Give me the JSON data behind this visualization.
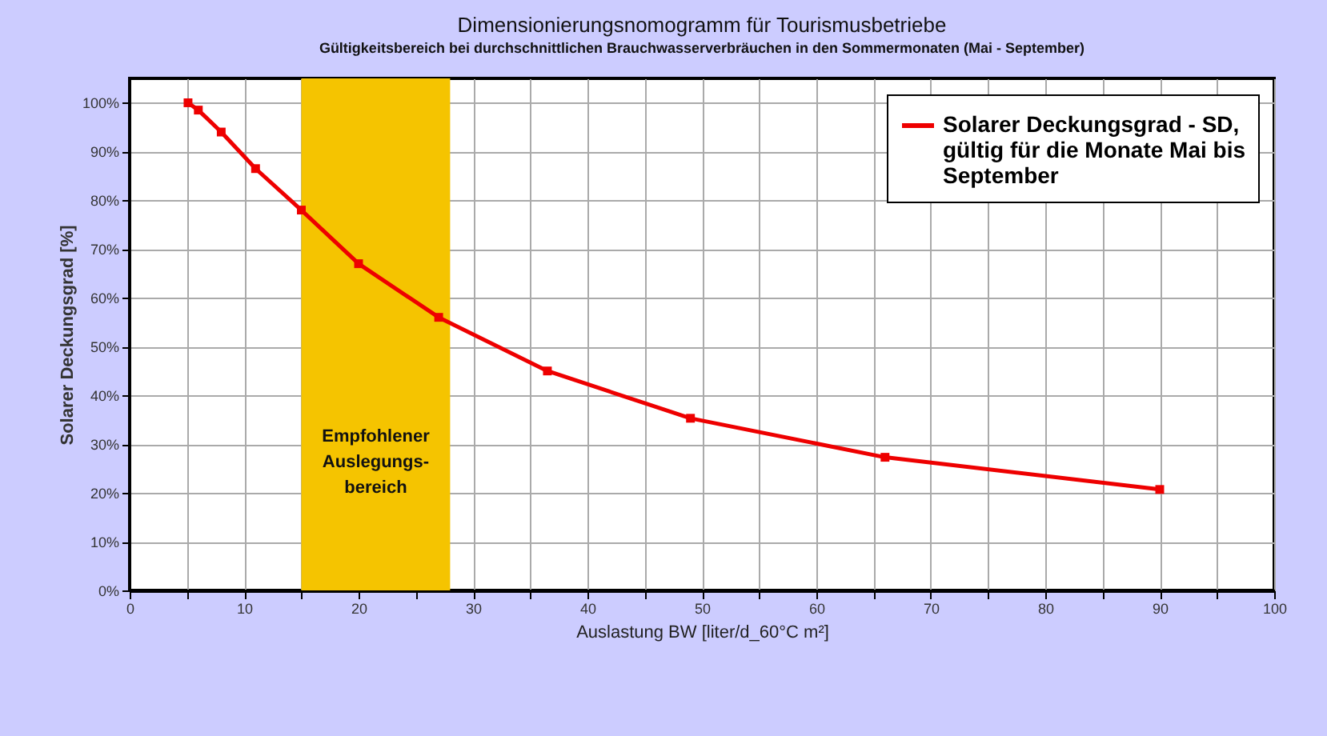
{
  "chart_data": {
    "type": "line",
    "title": "Dimensionierungsnomogramm für Tourismusbetriebe",
    "subtitle": "Gültigkeitsbereich bei durchschnittlichen Brauchwasserverbräuchen in den Sommermonaten (Mai - September)",
    "xlabel": "Auslastung BW [liter/d_60°C m²]",
    "ylabel": "Solarer Deckungsgrad  [%]",
    "x": [
      5.1,
      6,
      8,
      11,
      15,
      20,
      27,
      36.5,
      49,
      66,
      90
    ],
    "series": [
      {
        "name": "Solarer Deckungsgrad - SD, gültig für die Monate Mai bis September",
        "color": "#ee0000",
        "values": [
          100,
          98.5,
          94,
          86.5,
          78,
          67,
          56,
          45,
          35.3,
          27.3,
          20.7
        ]
      }
    ],
    "xlim": [
      0,
      100
    ],
    "xticks": [
      0,
      {
        "value": 5,
        "label": null
      },
      10,
      {
        "value": 15,
        "label": null
      },
      20,
      {
        "value": 25,
        "label": null
      },
      30,
      {
        "value": 35,
        "label": null
      },
      40,
      {
        "value": 45,
        "label": null
      },
      50,
      {
        "value": 55,
        "label": null
      },
      60,
      {
        "value": 65,
        "label": null
      },
      70,
      {
        "value": 75,
        "label": null
      },
      80,
      {
        "value": 85,
        "label": null
      },
      90,
      {
        "value": 95,
        "label": null
      },
      100
    ],
    "ylim": [
      0,
      105
    ],
    "yticks": [
      {
        "value": 0,
        "label": "0%"
      },
      {
        "value": 10,
        "label": "10%"
      },
      {
        "value": 20,
        "label": "20%"
      },
      {
        "value": 30,
        "label": "30%"
      },
      {
        "value": 40,
        "label": "40%"
      },
      {
        "value": 50,
        "label": "50%"
      },
      {
        "value": 60,
        "label": "60%"
      },
      {
        "value": 70,
        "label": "70%"
      },
      {
        "value": 80,
        "label": "80%"
      },
      {
        "value": 90,
        "label": "90%"
      },
      {
        "value": 100,
        "label": "100%"
      }
    ],
    "bands": [
      {
        "axis": "x",
        "from": 15,
        "to": 28,
        "label": "Empfohlener Auslegungs- bereich",
        "color": "#f5c400"
      }
    ],
    "grid": true,
    "legend": "top right",
    "marker": "square",
    "line_style": "solid"
  }
}
